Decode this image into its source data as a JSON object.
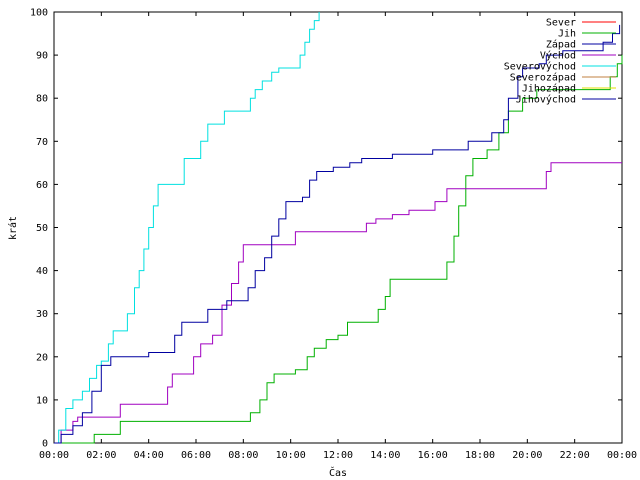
{
  "chart_data": {
    "type": "line",
    "xlabel": "Čas",
    "ylabel": "krát",
    "xlim": [
      0,
      24
    ],
    "ylim": [
      0,
      100
    ],
    "x_ticks": [
      "00:00",
      "02:00",
      "04:00",
      "06:00",
      "08:00",
      "10:00",
      "12:00",
      "14:00",
      "16:00",
      "18:00",
      "20:00",
      "22:00",
      "00:00"
    ],
    "y_ticks": [
      0,
      10,
      20,
      30,
      40,
      50,
      60,
      70,
      80,
      90,
      100
    ],
    "grid": false,
    "legend_placement": "top-right",
    "step": true,
    "series": [
      {
        "name": "Sever",
        "color": "#ff0000",
        "points": []
      },
      {
        "name": "Jih",
        "color": "#00b000",
        "points": [
          [
            0,
            0
          ],
          [
            1.7,
            0
          ],
          [
            1.7,
            2
          ],
          [
            2.7,
            2
          ],
          [
            2.8,
            5
          ],
          [
            7,
            5
          ],
          [
            8.2,
            5
          ],
          [
            8.3,
            7
          ],
          [
            8.7,
            10
          ],
          [
            9,
            14
          ],
          [
            9.3,
            16
          ],
          [
            9.9,
            16
          ],
          [
            10.2,
            17
          ],
          [
            10.7,
            20
          ],
          [
            11,
            22
          ],
          [
            11.5,
            24
          ],
          [
            12,
            25
          ],
          [
            12.4,
            28
          ],
          [
            13.5,
            28
          ],
          [
            13.7,
            31
          ],
          [
            14,
            34
          ],
          [
            14.2,
            38
          ],
          [
            16.5,
            38
          ],
          [
            16.6,
            42
          ],
          [
            16.9,
            48
          ],
          [
            17.1,
            55
          ],
          [
            17.4,
            62
          ],
          [
            17.7,
            66
          ],
          [
            18.3,
            68
          ],
          [
            18.8,
            72
          ],
          [
            19.2,
            77
          ],
          [
            19.8,
            80
          ],
          [
            20.4,
            82
          ],
          [
            20.8,
            82
          ],
          [
            23,
            82
          ],
          [
            23.5,
            85
          ],
          [
            23.8,
            88
          ],
          [
            24,
            90
          ]
        ]
      },
      {
        "name": "Západ",
        "color": "#0000a0",
        "points": []
      },
      {
        "name": "Východ",
        "color": "#a000c0",
        "points": [
          [
            0,
            0
          ],
          [
            0.3,
            0
          ],
          [
            0.3,
            3
          ],
          [
            0.7,
            3
          ],
          [
            0.8,
            5
          ],
          [
            1,
            6
          ],
          [
            2.5,
            6
          ],
          [
            2.8,
            9
          ],
          [
            4.5,
            9
          ],
          [
            4.8,
            13
          ],
          [
            5,
            16
          ],
          [
            5.6,
            16
          ],
          [
            5.9,
            20
          ],
          [
            6.2,
            23
          ],
          [
            6.7,
            25
          ],
          [
            7.1,
            32
          ],
          [
            7.5,
            37
          ],
          [
            7.8,
            42
          ],
          [
            8,
            46
          ],
          [
            10,
            46
          ],
          [
            10.2,
            49
          ],
          [
            13,
            49
          ],
          [
            13.2,
            51
          ],
          [
            13.6,
            52
          ],
          [
            14.3,
            53
          ],
          [
            15,
            54
          ],
          [
            15.8,
            54
          ],
          [
            16.1,
            56
          ],
          [
            16.6,
            59
          ],
          [
            20.6,
            59
          ],
          [
            20.8,
            63
          ],
          [
            21,
            65
          ],
          [
            24,
            65
          ]
        ]
      },
      {
        "name": "Severovýchod",
        "color": "#00e0e0",
        "points": [
          [
            0,
            0
          ],
          [
            0.2,
            3
          ],
          [
            0.5,
            8
          ],
          [
            0.8,
            10
          ],
          [
            1.2,
            12
          ],
          [
            1.5,
            15
          ],
          [
            1.8,
            18
          ],
          [
            2,
            19
          ],
          [
            2.3,
            23
          ],
          [
            2.5,
            26
          ],
          [
            2.9,
            26
          ],
          [
            3.1,
            30
          ],
          [
            3.4,
            36
          ],
          [
            3.6,
            40
          ],
          [
            3.8,
            45
          ],
          [
            4,
            50
          ],
          [
            4.2,
            55
          ],
          [
            4.4,
            60
          ],
          [
            5.2,
            60
          ],
          [
            5.5,
            66
          ],
          [
            5.9,
            66
          ],
          [
            6.2,
            70
          ],
          [
            6.5,
            74
          ],
          [
            7,
            74
          ],
          [
            7.2,
            77
          ],
          [
            8,
            77
          ],
          [
            8.3,
            80
          ],
          [
            8.5,
            82
          ],
          [
            8.8,
            84
          ],
          [
            9.2,
            86
          ],
          [
            9.5,
            87
          ],
          [
            10.2,
            87
          ],
          [
            10.4,
            90
          ],
          [
            10.6,
            93
          ],
          [
            10.8,
            96
          ],
          [
            11,
            98
          ],
          [
            11.2,
            100
          ]
        ]
      },
      {
        "name": "Severozápad",
        "color": "#c08040",
        "points": []
      },
      {
        "name": "Jihozápad",
        "color": "#e0e000",
        "points": []
      },
      {
        "name": "Jihovýchod",
        "color": "#0000a0",
        "points": [
          [
            0,
            0
          ],
          [
            0.3,
            2
          ],
          [
            0.6,
            2
          ],
          [
            0.8,
            4
          ],
          [
            1.2,
            7
          ],
          [
            1.6,
            12
          ],
          [
            2,
            18
          ],
          [
            2.4,
            20
          ],
          [
            3.8,
            20
          ],
          [
            4,
            21
          ],
          [
            4.9,
            21
          ],
          [
            5.1,
            25
          ],
          [
            5.4,
            28
          ],
          [
            6.3,
            28
          ],
          [
            6.5,
            31
          ],
          [
            7,
            31
          ],
          [
            7.3,
            33
          ],
          [
            7.9,
            33
          ],
          [
            8.2,
            36
          ],
          [
            8.5,
            40
          ],
          [
            8.9,
            43
          ],
          [
            9.2,
            48
          ],
          [
            9.5,
            52
          ],
          [
            9.8,
            56
          ],
          [
            10.5,
            57
          ],
          [
            10.8,
            61
          ],
          [
            11.1,
            63
          ],
          [
            11.8,
            64
          ],
          [
            12.5,
            65
          ],
          [
            13,
            66
          ],
          [
            14.1,
            66
          ],
          [
            14.3,
            67
          ],
          [
            15.8,
            67
          ],
          [
            16,
            68
          ],
          [
            17,
            68
          ],
          [
            17.5,
            70
          ],
          [
            18.5,
            72
          ],
          [
            19,
            75
          ],
          [
            19.2,
            80
          ],
          [
            19.6,
            85
          ],
          [
            19.8,
            87
          ],
          [
            20.5,
            88
          ],
          [
            20.8,
            90
          ],
          [
            21.5,
            91
          ],
          [
            23,
            91
          ],
          [
            23.2,
            93
          ],
          [
            23.6,
            95
          ],
          [
            23.9,
            97
          ]
        ]
      }
    ]
  }
}
